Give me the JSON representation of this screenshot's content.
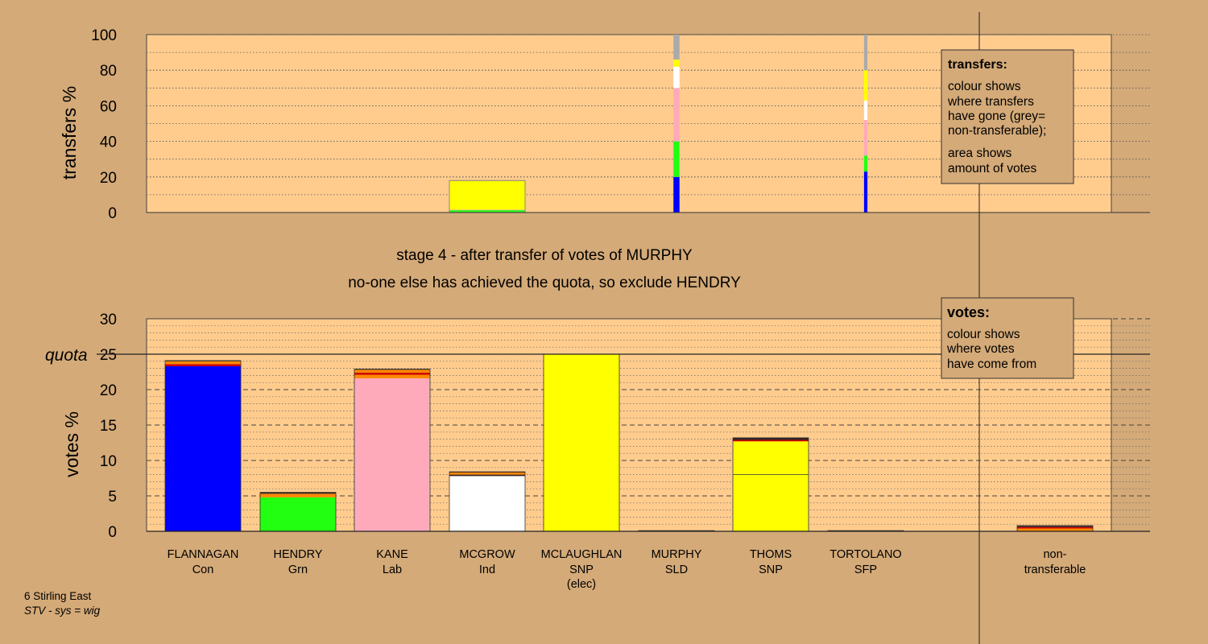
{
  "colors": {
    "background": "#d4aa78",
    "plot_bg": "#ffcc8e",
    "Con": "#0000ff",
    "Grn": "#22ff11",
    "Lab": "#ffaabb",
    "Ind": "#ffffff",
    "SNP": "#ffff00",
    "SLD": "#ff8800",
    "SFP": "#cc0000",
    "nontransferable": "#aaaaaa",
    "dark": "#332222"
  },
  "titles": {
    "line1": "stage 4 - after transfer of votes of MURPHY",
    "line2": "no-one else has achieved the quota, so exclude HENDRY"
  },
  "footer": {
    "line1": "6 Stirling East",
    "line2": "STV - sys = wig"
  },
  "legend_transfers": {
    "title": "transfers:",
    "lines": [
      "colour shows",
      "where transfers",
      "have gone (grey=",
      "non-transferable);"
    ],
    "lines2": [
      "area shows",
      "amount of votes"
    ]
  },
  "legend_votes": {
    "title": "votes:",
    "lines": [
      "colour shows",
      "where votes",
      "have come from"
    ]
  },
  "chart_data": [
    {
      "type": "bar",
      "ylabel": "transfers %",
      "ylim": [
        0,
        100
      ],
      "yticks": [
        0,
        20,
        40,
        60,
        80,
        100
      ],
      "blocks": [
        {
          "candidate": "MCGROW",
          "position": 4,
          "width_share": 1.0,
          "segments": [
            {
              "party": "Con",
              "value": 0.3
            },
            {
              "party": "Grn",
              "value": 1.0
            },
            {
              "party": "Lab",
              "value": 0.3
            },
            {
              "party": "SNP",
              "value": 16.2
            },
            {
              "party": "nontransferable",
              "value": 0.2
            }
          ]
        },
        {
          "candidate": "MURPHY",
          "position": 6,
          "width_share": 0.08,
          "segments": [
            {
              "party": "Con",
              "value": 20
            },
            {
              "party": "Grn",
              "value": 20
            },
            {
              "party": "Lab",
              "value": 30
            },
            {
              "party": "Ind",
              "value": 12
            },
            {
              "party": "SNP",
              "value": 4
            },
            {
              "party": "nontransferable",
              "value": 14
            }
          ]
        },
        {
          "candidate": "TORTOLANO",
          "position": 8,
          "width_share": 0.045,
          "segments": [
            {
              "party": "Con",
              "value": 23
            },
            {
              "party": "Grn",
              "value": 9
            },
            {
              "party": "Lab",
              "value": 20
            },
            {
              "party": "Ind",
              "value": 11
            },
            {
              "party": "SNP",
              "value": 17
            },
            {
              "party": "nontransferable",
              "value": 20
            }
          ]
        }
      ]
    },
    {
      "type": "bar",
      "ylabel": "votes %",
      "ylim": [
        0,
        30
      ],
      "yticks": [
        0,
        5,
        10,
        15,
        20,
        25,
        30
      ],
      "quota": 25,
      "quota_label": "quota",
      "categories": [
        {
          "name": "FLANNAGAN",
          "party": "Con",
          "note": ""
        },
        {
          "name": "HENDRY",
          "party": "Grn",
          "note": ""
        },
        {
          "name": "KANE",
          "party": "Lab",
          "note": ""
        },
        {
          "name": "MCGROW",
          "party": "Ind",
          "note": ""
        },
        {
          "name": "MCLAUGHLAN",
          "party": "SNP",
          "note": "(elec)"
        },
        {
          "name": "MURPHY",
          "party": "SLD",
          "note": ""
        },
        {
          "name": "THOMS",
          "party": "SNP",
          "note": ""
        },
        {
          "name": "TORTOLANO",
          "party": "SFP",
          "note": ""
        },
        {
          "name": "non-",
          "party": "transferable",
          "note": ""
        }
      ],
      "stacks": [
        [
          {
            "color": "Con",
            "value": 23.3
          },
          {
            "color": "SFP",
            "value": 0.3
          },
          {
            "color": "SLD",
            "value": 0.4
          },
          {
            "color": "dark",
            "value": 0.1
          }
        ],
        [
          {
            "color": "Grn",
            "value": 4.8
          },
          {
            "color": "SLD",
            "value": 0.5
          },
          {
            "color": "dark",
            "value": 0.2
          }
        ],
        [
          {
            "color": "Lab",
            "value": 21.6
          },
          {
            "color": "SLD",
            "value": 0.5
          },
          {
            "color": "SFP",
            "value": 0.3
          },
          {
            "color": "SLD",
            "value": 0.4
          },
          {
            "color": "dark",
            "value": 0.1
          }
        ],
        [
          {
            "color": "Ind",
            "value": 7.8
          },
          {
            "color": "dark",
            "value": 0.2
          },
          {
            "color": "SLD",
            "value": 0.3
          },
          {
            "color": "dark",
            "value": 0.1
          }
        ],
        [
          {
            "color": "SNP",
            "value": 25.0
          }
        ],
        [
          {
            "color": "SLD",
            "value": 0.1
          }
        ],
        [
          {
            "color": "SNP",
            "value": 8.0
          },
          {
            "color": "SNP",
            "value": 4.7
          },
          {
            "color": "SFP",
            "value": 0.2
          },
          {
            "color": "dark",
            "value": 0.3
          }
        ],
        [
          {
            "color": "SFP",
            "value": 0.1
          }
        ],
        [
          {
            "color": "SLD",
            "value": 0.4
          },
          {
            "color": "SFP",
            "value": 0.2
          },
          {
            "color": "dark",
            "value": 0.2
          }
        ]
      ]
    }
  ]
}
